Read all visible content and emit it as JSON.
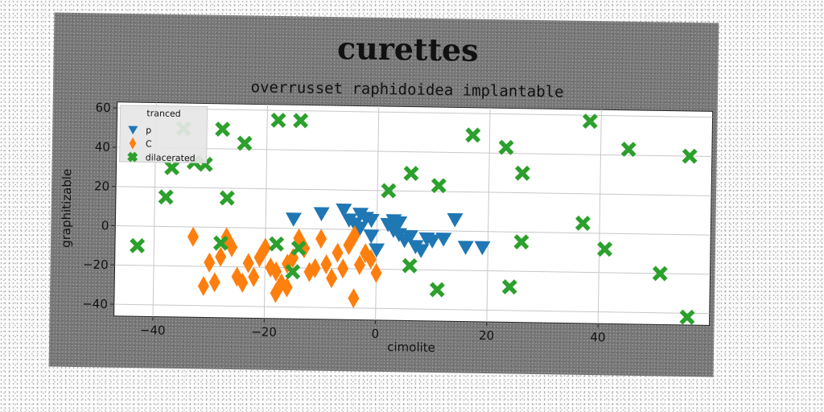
{
  "chart_data": {
    "type": "scatter",
    "title": "curettes",
    "subtitle": "overrusset raphidoidea implantable",
    "xlabel": "cimolite",
    "ylabel": "graphitizable",
    "xlim": [
      -47,
      60
    ],
    "ylim": [
      -46,
      63
    ],
    "xticks": [
      -40,
      -20,
      0,
      20,
      40
    ],
    "yticks": [
      -40,
      -20,
      0,
      20,
      40,
      60
    ],
    "grid": true,
    "legend": {
      "title": "tranced",
      "placement": "top-left"
    },
    "series": [
      {
        "name": "p",
        "marker": "triangle-down",
        "color": "#1f77b4",
        "points": [
          [
            -15,
            5
          ],
          [
            -10,
            8
          ],
          [
            -6,
            10
          ],
          [
            -5,
            5
          ],
          [
            -4,
            3
          ],
          [
            -3,
            8
          ],
          [
            -2,
            6
          ],
          [
            -1,
            5
          ],
          [
            2,
            3
          ],
          [
            3,
            0
          ],
          [
            3,
            5
          ],
          [
            4,
            4
          ],
          [
            4,
            -2
          ],
          [
            5,
            -5
          ],
          [
            6,
            -3
          ],
          [
            7,
            -8
          ],
          [
            8,
            -10
          ],
          [
            9,
            -4
          ],
          [
            10,
            -5
          ],
          [
            12,
            -4
          ],
          [
            14,
            6
          ],
          [
            16,
            -8
          ],
          [
            19,
            -8
          ],
          [
            -3,
            1
          ],
          [
            -1,
            -3
          ],
          [
            0,
            -10
          ]
        ]
      },
      {
        "name": "C",
        "marker": "diamond",
        "color": "#ff7f0e",
        "points": [
          [
            -33,
            -5
          ],
          [
            -31,
            -30
          ],
          [
            -30,
            -18
          ],
          [
            -29,
            -28
          ],
          [
            -28,
            -15
          ],
          [
            -27,
            -5
          ],
          [
            -26,
            -10
          ],
          [
            -25,
            -25
          ],
          [
            -24,
            -28
          ],
          [
            -23,
            -18
          ],
          [
            -22,
            -25
          ],
          [
            -21,
            -15
          ],
          [
            -20,
            -10
          ],
          [
            -19,
            -20
          ],
          [
            -18,
            -22
          ],
          [
            -18,
            -33
          ],
          [
            -17,
            -28
          ],
          [
            -16,
            -18
          ],
          [
            -16,
            -30
          ],
          [
            -15,
            -15
          ],
          [
            -14,
            -5
          ],
          [
            -13,
            -10
          ],
          [
            -12,
            -22
          ],
          [
            -11,
            -20
          ],
          [
            -10,
            -5
          ],
          [
            -9,
            -18
          ],
          [
            -8,
            -25
          ],
          [
            -7,
            -12
          ],
          [
            -6,
            -20
          ],
          [
            -5,
            -8
          ],
          [
            -4,
            -3
          ],
          [
            -4,
            -35
          ],
          [
            -3,
            -18
          ],
          [
            -2,
            -12
          ],
          [
            -1,
            -15
          ],
          [
            0,
            -22
          ]
        ]
      },
      {
        "name": "dilacerated",
        "marker": "x",
        "color": "#2ca02c",
        "points": [
          [
            -43,
            -10
          ],
          [
            -38,
            15
          ],
          [
            -37,
            30
          ],
          [
            -35,
            50
          ],
          [
            -33,
            33
          ],
          [
            -31,
            32
          ],
          [
            -28,
            50
          ],
          [
            -27,
            15
          ],
          [
            -28,
            -8
          ],
          [
            -24,
            43
          ],
          [
            -18,
            55
          ],
          [
            -18,
            -8
          ],
          [
            -14,
            55
          ],
          [
            -14,
            -10
          ],
          [
            -15,
            -22
          ],
          [
            2,
            20
          ],
          [
            6,
            29
          ],
          [
            6,
            -18
          ],
          [
            11,
            23
          ],
          [
            11,
            -30
          ],
          [
            17,
            49
          ],
          [
            23,
            43
          ],
          [
            26,
            30
          ],
          [
            26,
            -5
          ],
          [
            24,
            -28
          ],
          [
            37,
            5
          ],
          [
            38,
            57
          ],
          [
            41,
            -8
          ],
          [
            45,
            43
          ],
          [
            51,
            -20
          ],
          [
            56,
            40
          ],
          [
            56,
            -42
          ]
        ]
      }
    ]
  }
}
